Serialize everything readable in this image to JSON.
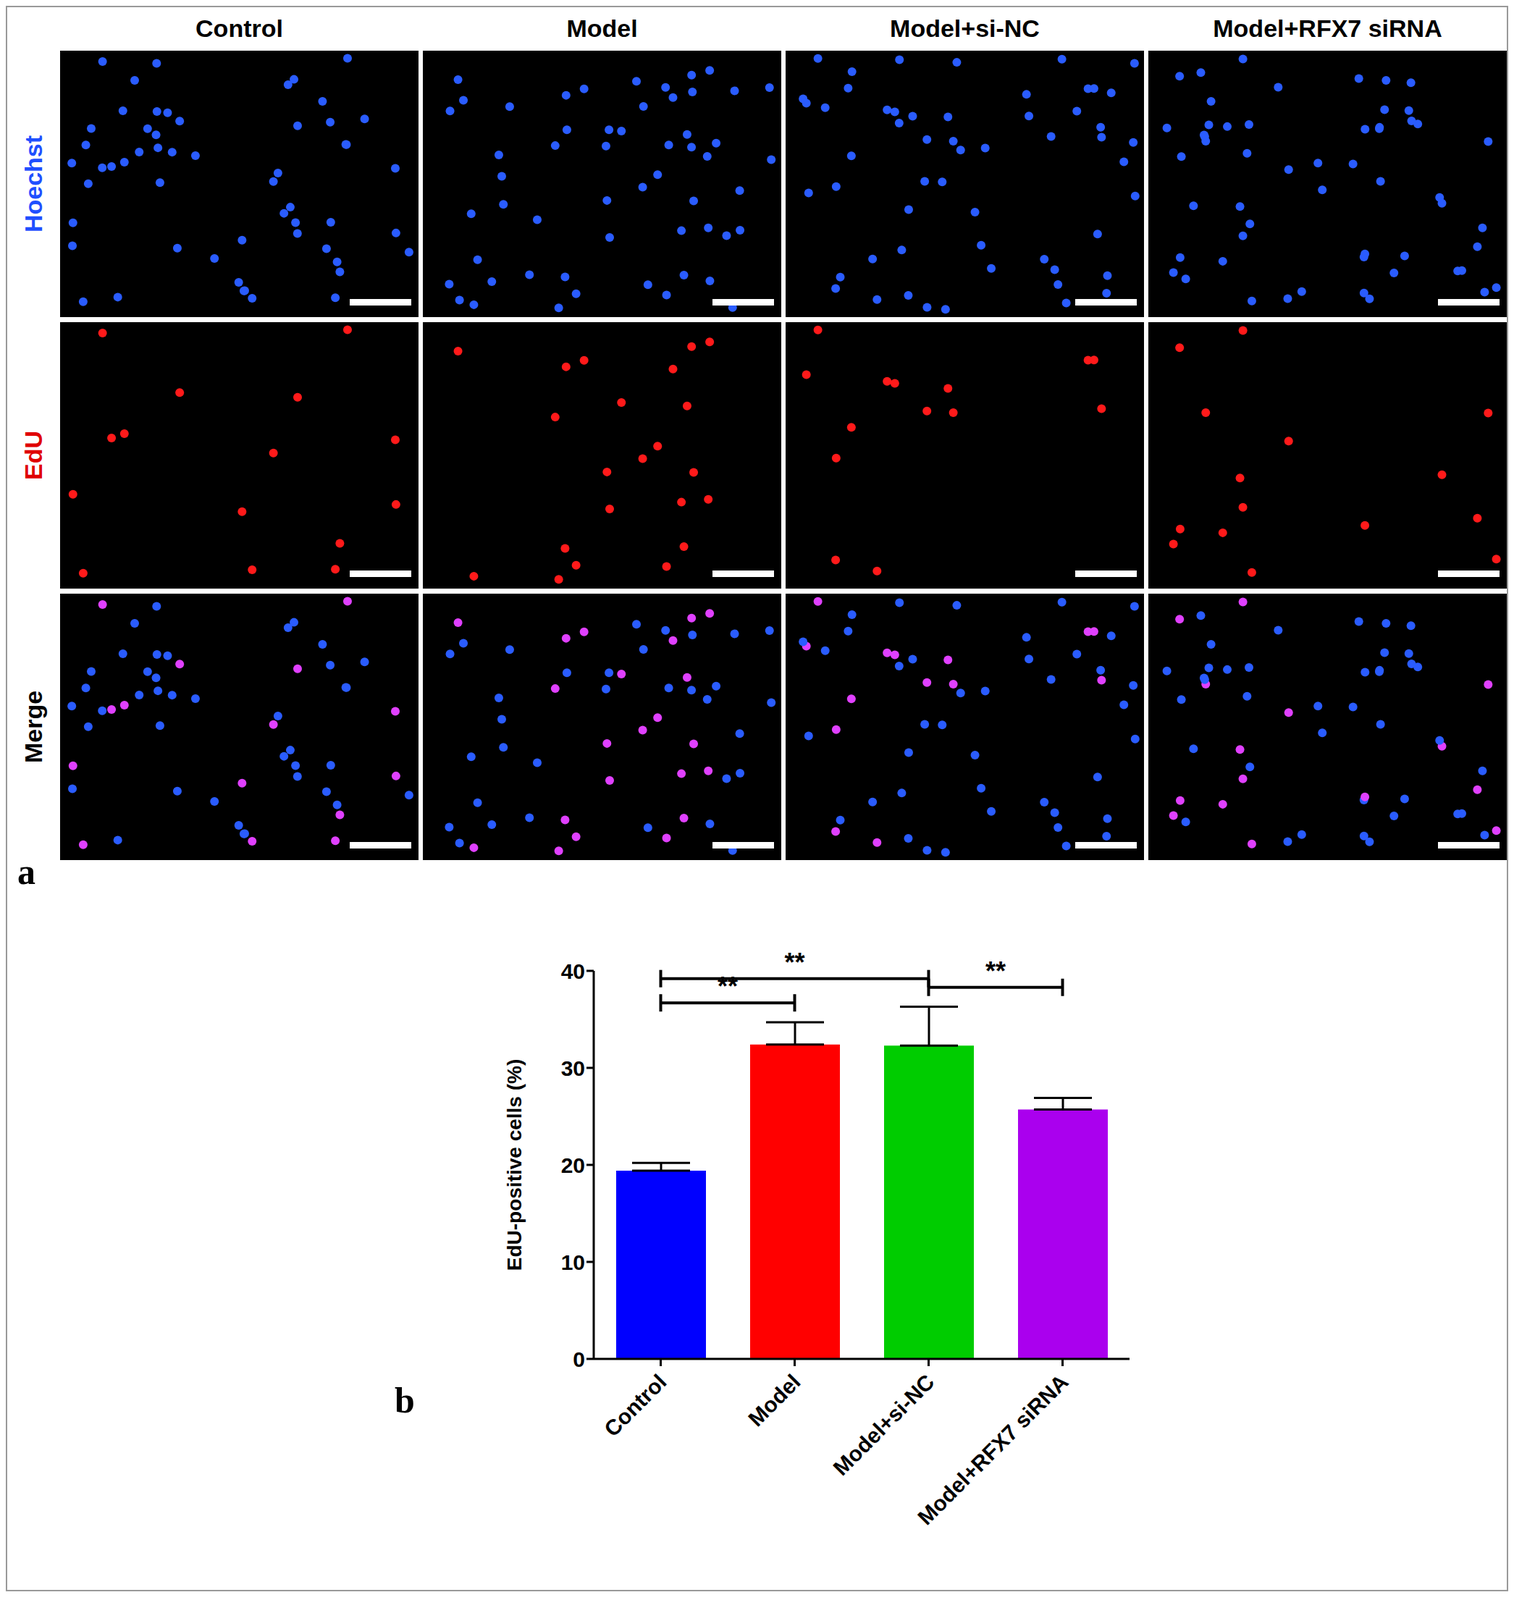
{
  "figure": {
    "panel_a": {
      "label": "a",
      "columns": [
        "Control",
        "Model",
        "Model+si-NC",
        "Model+RFX7 siRNA"
      ],
      "rows": [
        "Hoechst",
        "EdU",
        "Merge"
      ]
    },
    "panel_b": {
      "label": "b"
    }
  },
  "chart_data": {
    "type": "bar",
    "categories": [
      "Control",
      "Model",
      "Model+si-NC",
      "Model+RFX7 siRNA"
    ],
    "values": [
      19.4,
      32.4,
      32.3,
      25.7
    ],
    "error": [
      0.8,
      2.3,
      4.0,
      1.2
    ],
    "colors": [
      "#0000ff",
      "#ff0000",
      "#00cc00",
      "#aa00ee"
    ],
    "y_label": "EdU-positive cells (%)",
    "ylim": [
      0,
      40
    ],
    "yticks": [
      0,
      10,
      20,
      30,
      40
    ],
    "grid": false,
    "annotations": [
      {
        "from": "Control",
        "to": "Model",
        "text": "**"
      },
      {
        "from": "Control",
        "to": "Model+si-NC",
        "text": "**"
      },
      {
        "from": "Model+si-NC",
        "to": "Model+RFX7 siRNA",
        "text": "**"
      }
    ]
  }
}
